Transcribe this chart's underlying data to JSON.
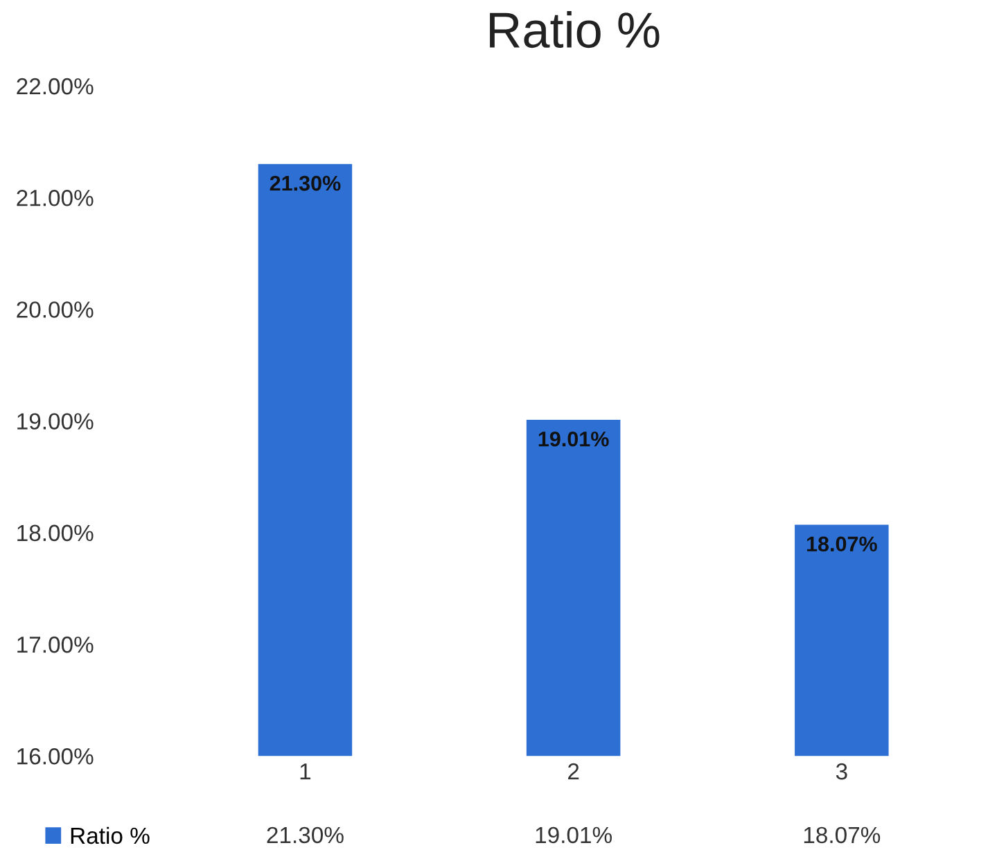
{
  "chart_data": {
    "type": "bar",
    "title": "Ratio %",
    "categories": [
      "1",
      "2",
      "3"
    ],
    "series": [
      {
        "name": "Ratio %",
        "color": "#2e6fd3",
        "values": [
          21.3,
          19.01,
          18.07
        ]
      }
    ],
    "value_labels": [
      "21.30%",
      "19.01%",
      "18.07%"
    ],
    "ylim": [
      16,
      22
    ],
    "yticks": [
      {
        "value": 16,
        "label": "16.00%"
      },
      {
        "value": 17,
        "label": "17.00%"
      },
      {
        "value": 18,
        "label": "18.00%"
      },
      {
        "value": 19,
        "label": "19.00%"
      },
      {
        "value": 20,
        "label": "20.00%"
      },
      {
        "value": 21,
        "label": "21.00%"
      },
      {
        "value": 22,
        "label": "22.00%"
      }
    ],
    "grid": false,
    "legend": "bottom left"
  }
}
